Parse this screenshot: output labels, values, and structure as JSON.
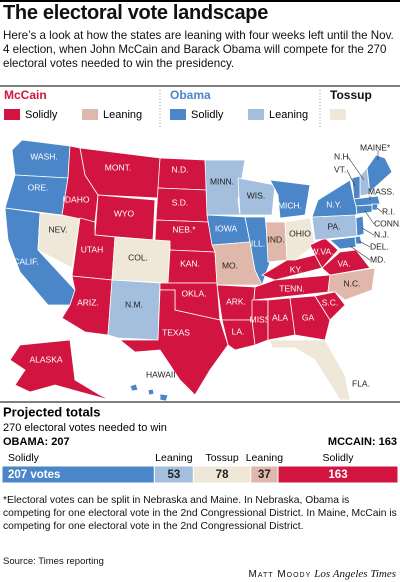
{
  "title": "The electoral vote landscape",
  "intro": "Here’s a look at how the states are leaning with four weeks left until the Nov. 4 election, when John McCain and Barack Obama will compete for the 270 electoral votes needed to win the presidency.",
  "colors": {
    "mccain_solid": "#d11540",
    "mccain_leaning": "#dfb7ab",
    "obama_solid": "#4b86c8",
    "obama_leaning": "#a4bfdd",
    "tossup": "#efe8d9"
  },
  "legend": {
    "mccain": "McCain",
    "obama": "Obama",
    "tossup": "Tossup",
    "solidly": "Solidly",
    "leaning": "Leaning"
  },
  "map": {
    "states": [
      {
        "label": "WASH.",
        "group": "obama_solid"
      },
      {
        "label": "ORE.",
        "group": "obama_solid"
      },
      {
        "label": "CALIF.",
        "group": "obama_solid"
      },
      {
        "label": "NEV.",
        "group": "tossup"
      },
      {
        "label": "IDAHO",
        "group": "mccain_solid"
      },
      {
        "label": "MONT.",
        "group": "mccain_solid"
      },
      {
        "label": "WYO",
        "group": "mccain_solid"
      },
      {
        "label": "UTAH",
        "group": "mccain_solid"
      },
      {
        "label": "ARIZ.",
        "group": "mccain_solid"
      },
      {
        "label": "COL.",
        "group": "tossup"
      },
      {
        "label": "N.M.",
        "group": "obama_leaning"
      },
      {
        "label": "N.D.",
        "group": "mccain_solid"
      },
      {
        "label": "S.D.",
        "group": "mccain_solid"
      },
      {
        "label": "NEB.*",
        "group": "mccain_solid"
      },
      {
        "label": "KAN.",
        "group": "mccain_solid"
      },
      {
        "label": "OKLA.",
        "group": "mccain_solid"
      },
      {
        "label": "TEXAS",
        "group": "mccain_solid"
      },
      {
        "label": "MINN.",
        "group": "obama_leaning"
      },
      {
        "label": "IOWA",
        "group": "obama_solid"
      },
      {
        "label": "MO.",
        "group": "mccain_leaning"
      },
      {
        "label": "ARK.",
        "group": "mccain_solid"
      },
      {
        "label": "LA.",
        "group": "mccain_solid"
      },
      {
        "label": "WIS.",
        "group": "obama_leaning"
      },
      {
        "label": "ILL.",
        "group": "obama_solid"
      },
      {
        "label": "MICH.",
        "group": "obama_solid"
      },
      {
        "label": "IND.",
        "group": "mccain_leaning"
      },
      {
        "label": "OHIO",
        "group": "tossup"
      },
      {
        "label": "KY.",
        "group": "mccain_solid"
      },
      {
        "label": "TENN.",
        "group": "mccain_solid"
      },
      {
        "label": "MISS",
        "group": "mccain_solid"
      },
      {
        "label": "ALA",
        "group": "mccain_solid"
      },
      {
        "label": "GA",
        "group": "mccain_solid"
      },
      {
        "label": "S.C.",
        "group": "mccain_solid"
      },
      {
        "label": "N.C.",
        "group": "mccain_leaning"
      },
      {
        "label": "FLA.",
        "group": "tossup"
      },
      {
        "label": "VA.",
        "group": "mccain_solid"
      },
      {
        "label": "W.VA.",
        "group": "mccain_solid"
      },
      {
        "label": "PA.",
        "group": "obama_leaning"
      },
      {
        "label": "N.Y.",
        "group": "obama_solid"
      },
      {
        "label": "MAINE*",
        "group": "obama_solid"
      },
      {
        "label": "N.H.",
        "group": "obama_leaning"
      },
      {
        "label": "VT.",
        "group": "obama_solid"
      },
      {
        "label": "MASS.",
        "group": "obama_solid"
      },
      {
        "label": "R.I.",
        "group": "obama_solid"
      },
      {
        "label": "CONN.",
        "group": "obama_solid"
      },
      {
        "label": "N.J.",
        "group": "obama_solid"
      },
      {
        "label": "DEL.",
        "group": "obama_solid"
      },
      {
        "label": "MD.",
        "group": "obama_solid"
      },
      {
        "label": "ALASKA",
        "group": "mccain_solid"
      },
      {
        "label": "HAWAII",
        "group": "obama_solid"
      }
    ]
  },
  "totals": {
    "title": "Projected totals",
    "subtitle": "270 electoral votes needed to win",
    "obama_label": "OBAMA: 207",
    "mccain_label": "MCCAIN: 163",
    "headers": [
      "Solidly",
      "Leaning",
      "Tossup",
      "Leaning",
      "Solidly"
    ],
    "groups": [
      "obama_solid",
      "obama_leaning",
      "tossup",
      "mccain_leaning",
      "mccain_solid"
    ],
    "values": [
      207,
      53,
      78,
      37,
      163
    ],
    "value_labels": [
      "207 votes",
      "53",
      "78",
      "37",
      "163"
    ]
  },
  "footnote": "*Electoral votes can be split in Nebraska and Maine. In Nebraska, Obama is competing for one electoral vote in the 2nd Congressional District. In Maine, McCain is competing for one electoral vote in the 2nd Congressional District.",
  "source": "Source: Times reporting",
  "credit": {
    "name": "Matt Moody",
    "org": "Los Angeles Times"
  }
}
